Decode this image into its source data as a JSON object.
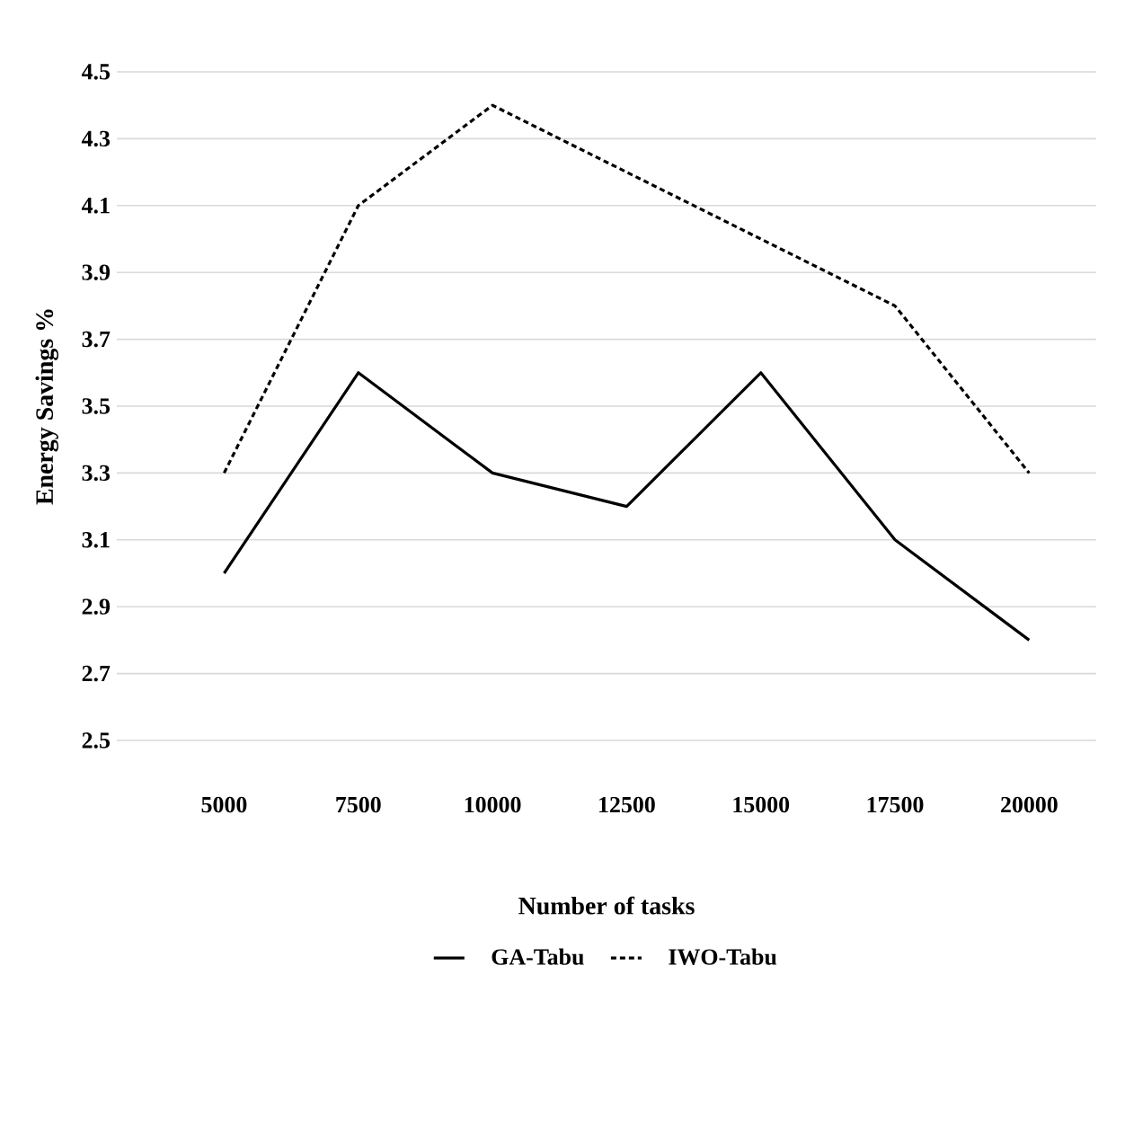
{
  "chart_data": {
    "type": "line",
    "xlabel": "Number of tasks",
    "ylabel": "Energy Savings %",
    "categories": [
      "5000",
      "7500",
      "10000",
      "12500",
      "15000",
      "17500",
      "20000"
    ],
    "series": [
      {
        "name": "GA-Tabu",
        "color": "#000000",
        "line_style": "solid",
        "values": [
          3.0,
          3.6,
          3.3,
          3.2,
          3.6,
          3.1,
          2.8
        ]
      },
      {
        "name": "IWO-Tabu",
        "color": "#000000",
        "line_style": "dashed",
        "values": [
          3.3,
          4.1,
          4.4,
          4.2,
          4.0,
          3.8,
          3.3
        ]
      }
    ],
    "ylim": [
      2.5,
      4.5
    ],
    "yticks": [
      2.5,
      2.7,
      2.9,
      3.1,
      3.3,
      3.5,
      3.7,
      3.9,
      4.1,
      4.3,
      4.5
    ],
    "grid": "y",
    "legend": "bottom",
    "marker": "none"
  }
}
